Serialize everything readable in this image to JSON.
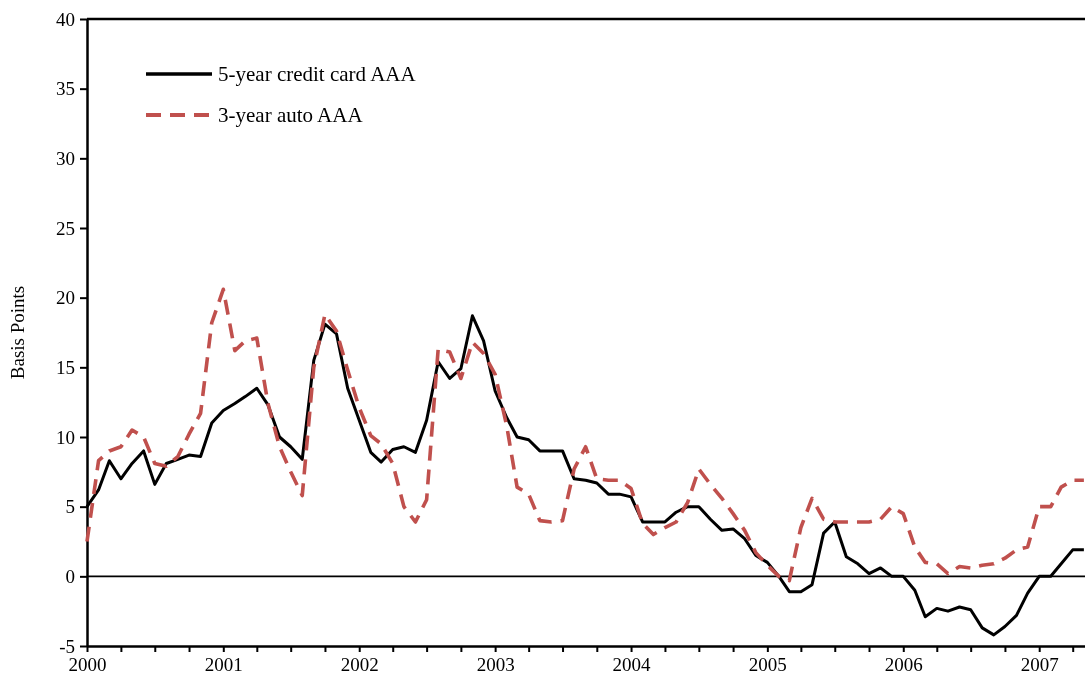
{
  "chart_data": {
    "type": "line",
    "ylabel": "Basis Points",
    "x": [
      "2000-01",
      "2000-02",
      "2000-03",
      "2000-04",
      "2000-05",
      "2000-06",
      "2000-07",
      "2000-08",
      "2000-09",
      "2000-10",
      "2000-11",
      "2000-12",
      "2001-01",
      "2001-02",
      "2001-03",
      "2001-04",
      "2001-05",
      "2001-06",
      "2001-07",
      "2001-08",
      "2001-09",
      "2001-10",
      "2001-11",
      "2001-12",
      "2002-01",
      "2002-02",
      "2002-03",
      "2002-04",
      "2002-05",
      "2002-06",
      "2002-07",
      "2002-08",
      "2002-09",
      "2002-10",
      "2002-11",
      "2002-12",
      "2003-01",
      "2003-02",
      "2003-03",
      "2003-04",
      "2003-05",
      "2003-06",
      "2003-07",
      "2003-08",
      "2003-09",
      "2003-10",
      "2003-11",
      "2003-12",
      "2004-01",
      "2004-02",
      "2004-03",
      "2004-04",
      "2004-05",
      "2004-06",
      "2004-07",
      "2004-08",
      "2004-09",
      "2004-10",
      "2004-11",
      "2004-12",
      "2005-01",
      "2005-02",
      "2005-03",
      "2005-04",
      "2005-05",
      "2005-06",
      "2005-07",
      "2005-08",
      "2005-09",
      "2005-10",
      "2005-11",
      "2005-12",
      "2006-01",
      "2006-02",
      "2006-03",
      "2006-04",
      "2006-05",
      "2006-06",
      "2006-07",
      "2006-08",
      "2006-09",
      "2006-10",
      "2006-11",
      "2006-12",
      "2007-01",
      "2007-02",
      "2007-03",
      "2007-04",
      "2007-05"
    ],
    "series": [
      {
        "name": "5-year credit card AAA",
        "color": "#000000",
        "line_style": "solid",
        "values": [
          5.0,
          6.2,
          8.3,
          7.0,
          8.1,
          9.0,
          6.6,
          8.1,
          8.4,
          8.7,
          8.6,
          11.0,
          11.9,
          12.4,
          12.9,
          13.5,
          12.3,
          10.0,
          9.3,
          8.4,
          15.5,
          18.1,
          17.4,
          13.5,
          11.2,
          8.9,
          8.2,
          9.1,
          9.3,
          8.9,
          11.2,
          15.4,
          14.2,
          14.9,
          18.7,
          16.9,
          13.3,
          11.4,
          10.0,
          9.8,
          9.0,
          9.0,
          9.0,
          7.0,
          6.9,
          6.7,
          5.9,
          5.9,
          5.7,
          3.9,
          3.9,
          3.9,
          4.6,
          5.0,
          5.0,
          4.1,
          3.3,
          3.4,
          2.7,
          1.5,
          1.0,
          0.0,
          -1.1,
          -1.1,
          -0.6,
          3.1,
          3.9,
          1.4,
          0.9,
          0.2,
          0.6,
          0.0,
          0.0,
          -1.0,
          -2.9,
          -2.3,
          -2.5,
          -2.2,
          -2.4,
          -3.7,
          -4.2,
          -3.6,
          -2.8,
          -1.2,
          0.0,
          0.0,
          0.9,
          1.9,
          1.9
        ]
      },
      {
        "name": "3-year auto AAA",
        "color": "#c0504d",
        "line_style": "dashed",
        "values": [
          2.5,
          8.3,
          9.0,
          9.3,
          10.5,
          10.0,
          8.1,
          7.9,
          8.6,
          10.2,
          11.7,
          18.2,
          20.6,
          16.2,
          16.9,
          17.1,
          12.4,
          9.3,
          7.5,
          5.8,
          15.0,
          18.8,
          17.6,
          14.8,
          12.1,
          10.1,
          9.5,
          8.1,
          5.0,
          3.9,
          5.5,
          16.3,
          16.1,
          14.2,
          16.8,
          16.0,
          14.5,
          10.8,
          6.4,
          5.9,
          4.0,
          3.9,
          4.0,
          7.7,
          9.3,
          7.0,
          6.9,
          6.9,
          6.3,
          3.8,
          3.0,
          3.5,
          3.9,
          5.3,
          7.7,
          6.6,
          5.6,
          4.5,
          3.3,
          1.7,
          0.8,
          0.0,
          -0.3,
          3.5,
          5.6,
          4.1,
          3.9,
          3.9,
          3.9,
          3.9,
          4.1,
          5.0,
          4.5,
          2.1,
          1.0,
          0.9,
          0.2,
          0.7,
          0.6,
          0.8,
          0.9,
          1.3,
          1.9,
          2.1,
          5.0,
          5.0,
          6.4,
          6.9,
          6.9
        ]
      }
    ],
    "xlim": [
      "2000-01",
      "2007-05-04"
    ],
    "xticks": [
      "2000",
      {
        "value": "2000-04",
        "label": null
      },
      {
        "value": "2000-07",
        "label": null
      },
      {
        "value": "2000-10",
        "label": null
      },
      "2001",
      {
        "value": "2001-04",
        "label": null
      },
      {
        "value": "2001-07",
        "label": null
      },
      {
        "value": "2001-10",
        "label": null
      },
      "2002",
      {
        "value": "2002-04",
        "label": null
      },
      {
        "value": "2002-07",
        "label": null
      },
      {
        "value": "2002-10",
        "label": null
      },
      "2003",
      {
        "value": "2003-04",
        "label": null
      },
      {
        "value": "2003-07",
        "label": null
      },
      {
        "value": "2003-10",
        "label": null
      },
      "2004",
      {
        "value": "2004-04",
        "label": null
      },
      {
        "value": "2004-07",
        "label": null
      },
      {
        "value": "2004-10",
        "label": null
      },
      "2005",
      {
        "value": "2005-04",
        "label": null
      },
      {
        "value": "2005-07",
        "label": null
      },
      {
        "value": "2005-10",
        "label": null
      },
      "2006",
      {
        "value": "2006-04",
        "label": null
      },
      {
        "value": "2006-07",
        "label": null
      },
      {
        "value": "2006-10",
        "label": null
      },
      "2007",
      {
        "value": "2007-04",
        "label": null
      }
    ],
    "ylim": [
      -5,
      40
    ],
    "yticks": [
      -5,
      0,
      5,
      10,
      15,
      20,
      25,
      30,
      35,
      40
    ],
    "ref_lines": [
      {
        "axis": "y",
        "value": 0,
        "color": "#000000"
      }
    ],
    "legend": "top left"
  }
}
